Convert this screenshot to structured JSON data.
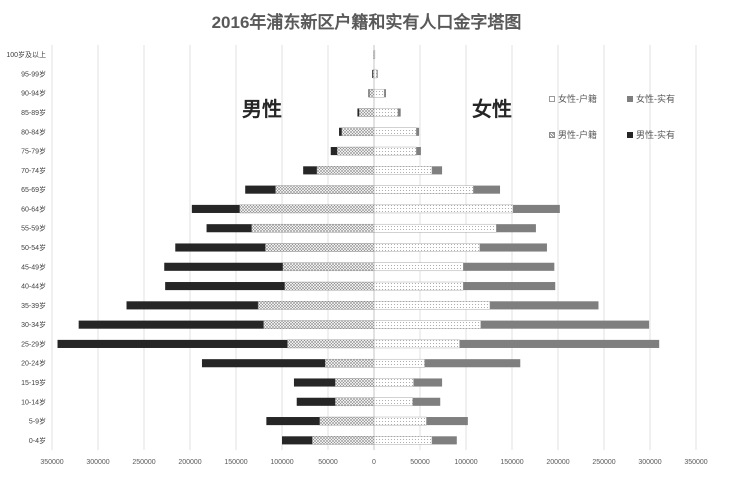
{
  "chart_data": {
    "type": "bar",
    "orientation": "horizontal",
    "title": "2016年浦东新区户籍和实有人口金字塔图",
    "male_label": "男性",
    "female_label": "女性",
    "categories": [
      "0-4岁",
      "5-9岁",
      "10-14岁",
      "15-19岁",
      "20-24岁",
      "25-29岁",
      "30-34岁",
      "35-39岁",
      "40-44岁",
      "45-49岁",
      "50-54岁",
      "55-59岁",
      "60-64岁",
      "65-69岁",
      "70-74岁",
      "75-79岁",
      "80-84岁",
      "85-89岁",
      "90-94岁",
      "95-99岁",
      "100岁及以上"
    ],
    "series": [
      {
        "name": "女性-户籍",
        "side": "right",
        "values": [
          63000,
          57000,
          42000,
          43000,
          55000,
          93000,
          116000,
          126000,
          97000,
          97000,
          115000,
          133000,
          151000,
          108000,
          63000,
          46000,
          46000,
          26000,
          11000,
          3000,
          1000
        ]
      },
      {
        "name": "女性-实有",
        "side": "right",
        "values": [
          90000,
          102000,
          72000,
          74000,
          159000,
          310000,
          299000,
          244000,
          197000,
          196000,
          188000,
          176000,
          202000,
          137000,
          74000,
          51000,
          49000,
          29000,
          13000,
          4000,
          1000
        ]
      },
      {
        "name": "男性-户籍",
        "side": "left",
        "values": [
          67000,
          59000,
          42000,
          42000,
          53000,
          94000,
          120000,
          126000,
          97000,
          99000,
          118000,
          133000,
          146000,
          107000,
          62000,
          40000,
          35000,
          16000,
          5000,
          1000,
          500
        ]
      },
      {
        "name": "男性-实有",
        "side": "left",
        "values": [
          100000,
          117000,
          84000,
          87000,
          187000,
          344000,
          321000,
          269000,
          227000,
          228000,
          216000,
          182000,
          198000,
          140000,
          77000,
          47000,
          38000,
          18000,
          6000,
          2000,
          500
        ]
      }
    ],
    "xlim": [
      -350000,
      350000
    ],
    "xticks": [
      "350000",
      "300000",
      "250000",
      "200000",
      "150000",
      "100000",
      "50000",
      "0",
      "50000",
      "100000",
      "150000",
      "200000",
      "250000",
      "300000",
      "350000"
    ],
    "grid": true,
    "legend_position": "top-right",
    "colors": {
      "female_actual": "#7f7f7f",
      "male_actual": "#262626",
      "grid": "#d9d9d9"
    }
  }
}
